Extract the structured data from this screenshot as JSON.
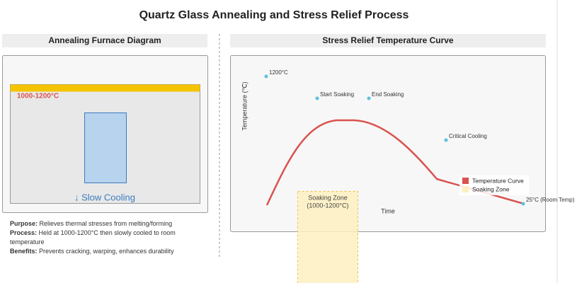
{
  "title": "Quartz Glass Annealing and Stress Relief Process",
  "left_panel": {
    "header": "Annealing Furnace Diagram",
    "furnace_label": "1000-1200°C",
    "cooling_label": "↓ Slow Cooling",
    "notes": [
      {
        "label": "Purpose:",
        "text": "Relieves thermal stresses from melting/forming"
      },
      {
        "label": "Process:",
        "text": "Held at 1000-1200°C then slowly cooled to room temperature"
      },
      {
        "label": "Benefits:",
        "text": "Prevents cracking, warping, enhances durability"
      }
    ]
  },
  "right_panel": {
    "header": "Stress Relief Temperature Curve",
    "y_axis_label": "Temperature (℃)",
    "x_axis_label": "Time",
    "soaking_zone": [
      "Soaking Zone",
      "(1000-1200°C)"
    ],
    "points": [
      "1200°C",
      "Start Soaking",
      "End Soaking",
      "Critical Cooling",
      "25°C (Room Temp)"
    ],
    "legend": [
      "Temperature Curve",
      "Soaking Zone"
    ]
  }
}
